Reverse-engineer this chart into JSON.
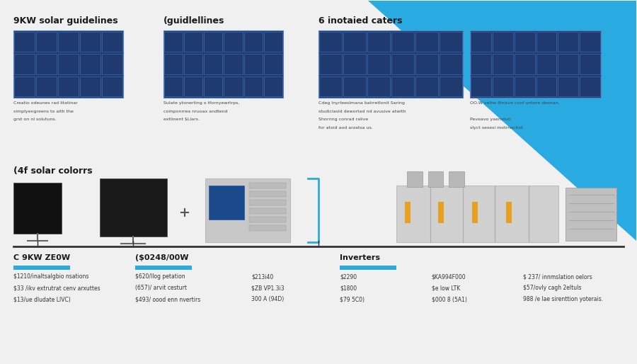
{
  "bg_color": "#f0f0f0",
  "title_top_left": "9KW solar guidelines",
  "title_top_mid": "(guidlellines",
  "title_top_right": "6 inotaied caters",
  "section_label": "(4f solar colorrs",
  "blue_triangle_color": "#29abe2",
  "sections": [
    {
      "label": "C 9KW ZE0W",
      "bar_color": "#29abe2",
      "items": [
        "$1210/inaltsalgbio nsations",
        "$33 /ikv extrutrat cenv arxuttes",
        "$13/ue dludate LIVC)"
      ]
    },
    {
      "label": "($0248/00W",
      "bar_color": "#29abe2",
      "items": [
        "$620/llog petation",
        "(657)/ arvit cesturt",
        "$493/ oood enn nvertirs"
      ]
    },
    {
      "label": "",
      "bar_color": "",
      "items": [
        "$213i40",
        "$ZB VP1.3i3",
        "300 A (94D)"
      ]
    },
    {
      "label": "Inverters",
      "bar_color": "#29abe2",
      "items": [
        "$2290",
        "$1800",
        "$79 5C0)"
      ]
    },
    {
      "label": "",
      "bar_color": "",
      "items": [
        "$KA994F000",
        "$e low LTK",
        "$000 8 (5A1)"
      ]
    },
    {
      "label": "",
      "bar_color": "",
      "items": [
        "$ 237/ innmslation oelors",
        "$57/ovly cagh 2eltuls",
        "988 /e lae sirenttion yoterais."
      ]
    }
  ],
  "timeline_color": "#333333",
  "top_descriptions": [
    [
      "Creatio odeunes rad litatinar",
      "simplyengreens to aith the",
      "grst on nl solutuns."
    ],
    [
      "Sulate ytonerting o tfornyewrtrps,",
      "componrrea nruoax andtend",
      "extlinent $Llars."
    ],
    [
      "Cdeg Inyrleeslmana balrretlonit Saring",
      "studiclasld dewortad nd avusive atwith",
      "Shorring conrad ralive",
      "for atxid aod arzatsa us."
    ],
    [
      "OO.W velhe llinisve coof untere deonan.",
      "",
      "Peveavo yaenstuti",
      "slyct sexesi motrnechid."
    ]
  ],
  "accent_color": "#29abe2",
  "text_color": "#1a1a1a",
  "font_size_title": 9,
  "font_size_label": 8,
  "font_size_items": 5.5
}
